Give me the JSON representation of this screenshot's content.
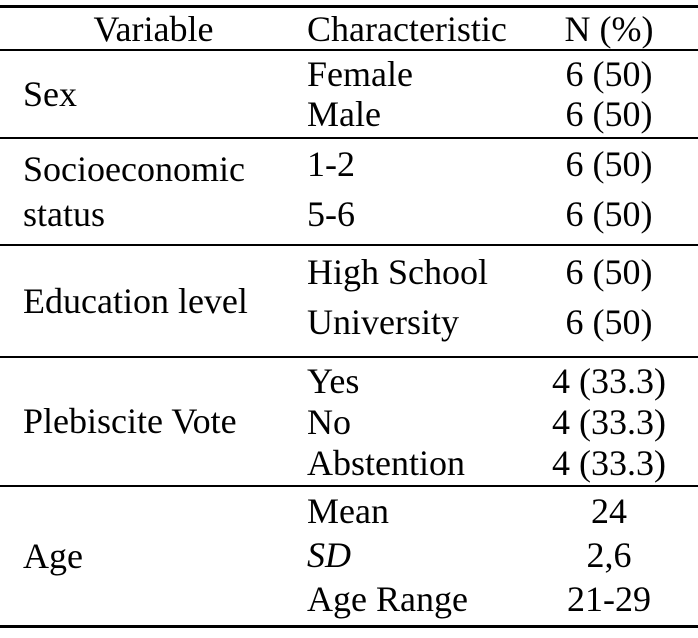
{
  "page": {
    "background_color": "#ffffff",
    "text_color": "#000000",
    "rule_color": "#000000"
  },
  "table": {
    "headers": {
      "variable": "Variable",
      "characteristic": "Characteristic",
      "n": "N (%)"
    },
    "sections": [
      {
        "variable": "Sex",
        "rows": [
          {
            "characteristic": "Female",
            "n": "6 (50)"
          },
          {
            "characteristic": "Male",
            "n": "6 (50)"
          }
        ]
      },
      {
        "variable": "Socioeconomic status",
        "rows": [
          {
            "characteristic": "1-2",
            "n": "6 (50)"
          },
          {
            "characteristic": "5-6",
            "n": "6 (50)"
          }
        ]
      },
      {
        "variable": "Education level",
        "rows": [
          {
            "characteristic": "High School",
            "n": "6 (50)"
          },
          {
            "characteristic": "University",
            "n": "6 (50)"
          }
        ]
      },
      {
        "variable": "Plebiscite Vote",
        "rows": [
          {
            "characteristic": "Yes",
            "n": "4 (33.3)"
          },
          {
            "characteristic": "No",
            "n": "4 (33.3)"
          },
          {
            "characteristic": "Abstention",
            "n": "4 (33.3)"
          }
        ]
      },
      {
        "variable": "Age",
        "rows": [
          {
            "characteristic": "Mean",
            "n": "24"
          },
          {
            "characteristic": "SD",
            "n": "2,6",
            "italic": true
          },
          {
            "characteristic": "Age Range",
            "n": "21-29"
          }
        ]
      }
    ]
  },
  "chart_data": {
    "type": "table",
    "columns": [
      "Variable",
      "Characteristic",
      "N (%)"
    ],
    "rows": [
      [
        "Sex",
        "Female",
        "6 (50)"
      ],
      [
        "Sex",
        "Male",
        "6 (50)"
      ],
      [
        "Socioeconomic status",
        "1-2",
        "6 (50)"
      ],
      [
        "Socioeconomic status",
        "5-6",
        "6 (50)"
      ],
      [
        "Education level",
        "High School",
        "6 (50)"
      ],
      [
        "Education level",
        "University",
        "6 (50)"
      ],
      [
        "Plebiscite Vote",
        "Yes",
        "4 (33.3)"
      ],
      [
        "Plebiscite Vote",
        "No",
        "4 (33.3)"
      ],
      [
        "Plebiscite Vote",
        "Abstention",
        "4 (33.3)"
      ],
      [
        "Age",
        "Mean",
        "24"
      ],
      [
        "Age",
        "SD",
        "2,6"
      ],
      [
        "Age",
        "Age Range",
        "21-29"
      ]
    ]
  }
}
